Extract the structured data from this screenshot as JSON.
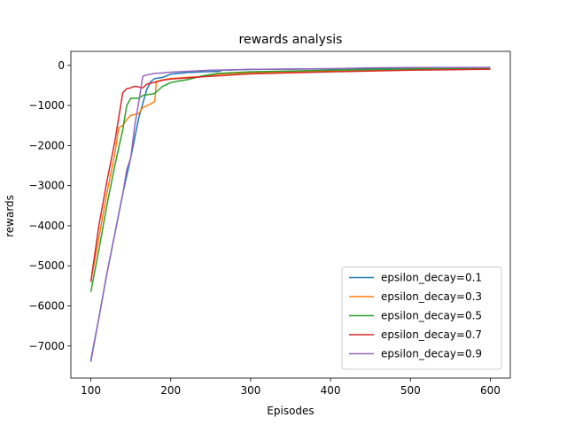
{
  "chart_data": {
    "type": "line",
    "title": "rewards analysis",
    "xlabel": "Episodes",
    "ylabel": "rewards",
    "xlim": [
      75,
      625
    ],
    "ylim": [
      -7800,
      350
    ],
    "xticks": [
      100,
      200,
      300,
      400,
      500,
      600
    ],
    "yticks": [
      0,
      -1000,
      -2000,
      -3000,
      -4000,
      -5000,
      -6000,
      -7000
    ],
    "ytick_labels": [
      "0",
      "−1000",
      "−2000",
      "−3000",
      "−4000",
      "−5000",
      "−6000",
      "−7000"
    ],
    "grid": false,
    "legend_position": "lower-right",
    "series": [
      {
        "name": "epsilon_decay=0.1",
        "color": "#1f77b4",
        "points": [
          [
            100,
            -7350
          ],
          [
            110,
            -6300
          ],
          [
            120,
            -5200
          ],
          [
            130,
            -4200
          ],
          [
            140,
            -3200
          ],
          [
            150,
            -2300
          ],
          [
            160,
            -1300
          ],
          [
            170,
            -600
          ],
          [
            175,
            -400
          ],
          [
            180,
            -330
          ],
          [
            190,
            -300
          ],
          [
            200,
            -220
          ],
          [
            220,
            -180
          ],
          [
            240,
            -160
          ],
          [
            260,
            -150
          ],
          [
            265,
            -120
          ],
          [
            300,
            -100
          ],
          [
            400,
            -85
          ],
          [
            500,
            -70
          ],
          [
            600,
            -60
          ]
        ]
      },
      {
        "name": "epsilon_decay=0.3",
        "color": "#ff7f0e",
        "points": [
          [
            100,
            -5400
          ],
          [
            110,
            -4300
          ],
          [
            120,
            -3200
          ],
          [
            130,
            -2200
          ],
          [
            135,
            -1550
          ],
          [
            140,
            -1500
          ],
          [
            145,
            -1350
          ],
          [
            150,
            -1250
          ],
          [
            160,
            -1200
          ],
          [
            165,
            -1050
          ],
          [
            175,
            -960
          ],
          [
            180,
            -900
          ],
          [
            182,
            -400
          ],
          [
            190,
            -360
          ],
          [
            200,
            -330
          ],
          [
            220,
            -300
          ],
          [
            240,
            -280
          ],
          [
            260,
            -220
          ],
          [
            300,
            -180
          ],
          [
            350,
            -160
          ],
          [
            400,
            -140
          ],
          [
            500,
            -110
          ],
          [
            600,
            -90
          ]
        ]
      },
      {
        "name": "epsilon_decay=0.5",
        "color": "#2ca02c",
        "points": [
          [
            100,
            -5650
          ],
          [
            110,
            -4600
          ],
          [
            120,
            -3500
          ],
          [
            130,
            -2500
          ],
          [
            140,
            -1600
          ],
          [
            145,
            -1000
          ],
          [
            150,
            -820
          ],
          [
            160,
            -820
          ],
          [
            165,
            -750
          ],
          [
            175,
            -720
          ],
          [
            180,
            -700
          ],
          [
            190,
            -520
          ],
          [
            200,
            -430
          ],
          [
            210,
            -390
          ],
          [
            220,
            -360
          ],
          [
            240,
            -260
          ],
          [
            260,
            -200
          ],
          [
            300,
            -160
          ],
          [
            400,
            -120
          ],
          [
            500,
            -90
          ],
          [
            600,
            -75
          ]
        ]
      },
      {
        "name": "epsilon_decay=0.7",
        "color": "#d62728",
        "points": [
          [
            100,
            -5400
          ],
          [
            110,
            -4000
          ],
          [
            120,
            -2900
          ],
          [
            130,
            -1900
          ],
          [
            140,
            -680
          ],
          [
            145,
            -580
          ],
          [
            150,
            -560
          ],
          [
            155,
            -520
          ],
          [
            165,
            -560
          ],
          [
            170,
            -470
          ],
          [
            180,
            -420
          ],
          [
            190,
            -370
          ],
          [
            200,
            -340
          ],
          [
            250,
            -270
          ],
          [
            300,
            -210
          ],
          [
            400,
            -160
          ],
          [
            500,
            -120
          ],
          [
            600,
            -95
          ]
        ]
      },
      {
        "name": "epsilon_decay=0.9",
        "color": "#9467bd",
        "points": [
          [
            100,
            -7400
          ],
          [
            110,
            -6300
          ],
          [
            120,
            -5200
          ],
          [
            130,
            -4200
          ],
          [
            140,
            -3200
          ],
          [
            145,
            -2600
          ],
          [
            150,
            -2300
          ],
          [
            155,
            -1500
          ],
          [
            160,
            -900
          ],
          [
            165,
            -270
          ],
          [
            170,
            -240
          ],
          [
            180,
            -200
          ],
          [
            190,
            -190
          ],
          [
            200,
            -170
          ],
          [
            250,
            -120
          ],
          [
            300,
            -100
          ],
          [
            400,
            -80
          ],
          [
            450,
            -60
          ],
          [
            500,
            -55
          ],
          [
            600,
            -50
          ]
        ]
      }
    ]
  }
}
